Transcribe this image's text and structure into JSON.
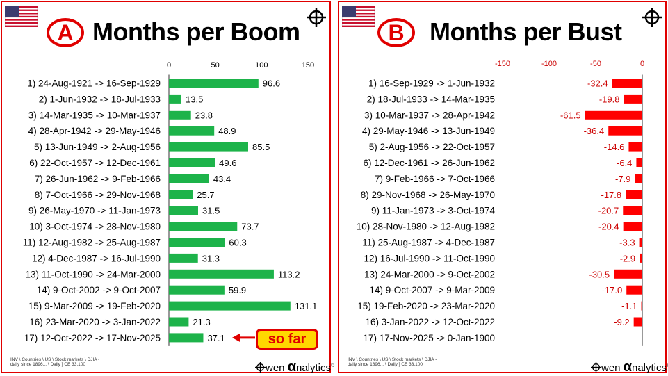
{
  "panel_a": {
    "letter": "A",
    "title": "Months per Boom",
    "footnote_line1": "INV \\ Countries \\ US \\ Stock markets \\ DJIA -",
    "footnote_line2": "daily since 1896... \\ Daily ] CE 33,100",
    "logo_text": "wen",
    "logo_alpha": "α",
    "logo_suffix": "nalytics",
    "logo_mark": "©",
    "callout": "so far",
    "colors": {
      "bar": "#1db34a",
      "accent": "#e00000",
      "callout_bg": "#ffd800"
    }
  },
  "panel_b": {
    "letter": "B",
    "title": "Months per Bust",
    "footnote_line1": "INV \\ Countries \\ US \\ Stock markets \\ DJIA -",
    "footnote_line2": "daily since 1896... \\ Daily ] CE 33,100",
    "logo_text": "wen",
    "logo_alpha": "α",
    "logo_suffix": "nalytics",
    "logo_mark": "©",
    "colors": {
      "bar": "#ff0000",
      "label": "#cc0000"
    }
  },
  "chart_data": [
    {
      "type": "bar",
      "orientation": "horizontal",
      "title": "Months per Boom",
      "xlim": [
        0,
        150
      ],
      "xticks": [
        "0",
        "50",
        "100",
        "150"
      ],
      "categories": [
        "1) 24-Aug-1921 -> 16-Sep-1929",
        "2) 1-Jun-1932 -> 18-Jul-1933",
        "3) 14-Mar-1935 -> 10-Mar-1937",
        "4) 28-Apr-1942 -> 29-May-1946",
        "5) 13-Jun-1949 -> 2-Aug-1956",
        "6) 22-Oct-1957 -> 12-Dec-1961",
        "7) 26-Jun-1962 -> 9-Feb-1966",
        "8) 7-Oct-1966 -> 29-Nov-1968",
        "9) 26-May-1970 -> 11-Jan-1973",
        "10) 3-Oct-1974 -> 28-Nov-1980",
        "11) 12-Aug-1982 -> 25-Aug-1987",
        "12) 4-Dec-1987 -> 16-Jul-1990",
        "13) 11-Oct-1990 -> 24-Mar-2000",
        "14) 9-Oct-2002 -> 9-Oct-2007",
        "15) 9-Mar-2009 -> 19-Feb-2020",
        "16) 23-Mar-2020 -> 3-Jan-2022",
        "17) 12-Oct-2022 -> 17-Nov-2025"
      ],
      "values": [
        96.6,
        13.5,
        23.8,
        48.9,
        85.5,
        49.6,
        43.4,
        25.7,
        31.5,
        73.7,
        60.3,
        31.3,
        113.2,
        59.9,
        131.1,
        21.3,
        37.1
      ],
      "labels": [
        "96.6",
        "13.5",
        "23.8",
        "48.9",
        "85.5",
        "49.6",
        "43.4",
        "25.7",
        "31.5",
        "73.7",
        "60.3",
        "31.3",
        "113.2",
        "59.9",
        "131.1",
        "21.3",
        "37.1"
      ],
      "annotation": "so far"
    },
    {
      "type": "bar",
      "orientation": "horizontal",
      "title": "Months per Bust",
      "xlim": [
        -150,
        0
      ],
      "xticks": [
        "-150",
        "-100",
        "-50",
        "0"
      ],
      "categories": [
        "1) 16-Sep-1929 -> 1-Jun-1932",
        "2) 18-Jul-1933 -> 14-Mar-1935",
        "3) 10-Mar-1937 -> 28-Apr-1942",
        "4) 29-May-1946 -> 13-Jun-1949",
        "5) 2-Aug-1956 -> 22-Oct-1957",
        "6) 12-Dec-1961 -> 26-Jun-1962",
        "7) 9-Feb-1966 -> 7-Oct-1966",
        "8) 29-Nov-1968 -> 26-May-1970",
        "9) 11-Jan-1973 -> 3-Oct-1974",
        "10) 28-Nov-1980 -> 12-Aug-1982",
        "11) 25-Aug-1987 -> 4-Dec-1987",
        "12) 16-Jul-1990 -> 11-Oct-1990",
        "13) 24-Mar-2000 -> 9-Oct-2002",
        "14) 9-Oct-2007 -> 9-Mar-2009",
        "15) 19-Feb-2020 -> 23-Mar-2020",
        "16) 3-Jan-2022 -> 12-Oct-2022",
        "17) 17-Nov-2025 -> 0-Jan-1900"
      ],
      "values": [
        -32.4,
        -19.8,
        -61.5,
        -36.4,
        -14.6,
        -6.4,
        -7.9,
        -17.8,
        -20.7,
        -20.4,
        -3.3,
        -2.9,
        -30.5,
        -17.0,
        -1.1,
        -9.2,
        null
      ],
      "labels": [
        "-32.4",
        "-19.8",
        "-61.5",
        "-36.4",
        "-14.6",
        "-6.4",
        "-7.9",
        "-17.8",
        "-20.7",
        "-20.4",
        "-3.3",
        "-2.9",
        "-30.5",
        "-17.0",
        "-1.1",
        "-9.2",
        ""
      ]
    }
  ]
}
